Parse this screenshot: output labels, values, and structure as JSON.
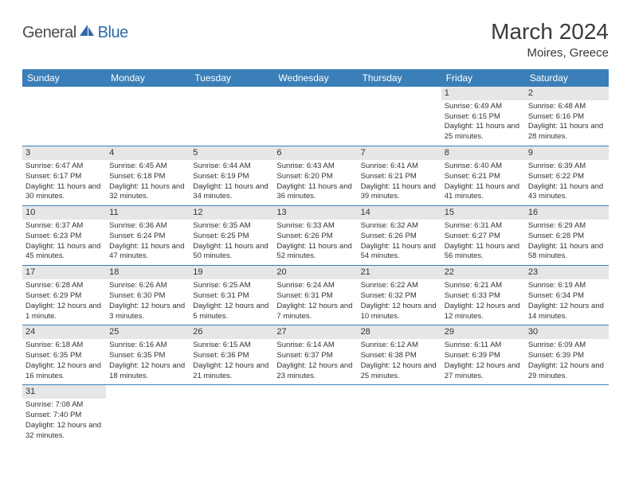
{
  "logo": {
    "text_gray": "General",
    "text_blue": "Blue"
  },
  "header": {
    "title": "March 2024",
    "location": "Moires, Greece"
  },
  "colors": {
    "header_bg": "#3b7fb8",
    "header_text": "#ffffff",
    "daynum_bg": "#e6e6e6",
    "row_border": "#3b7fb8",
    "body_text": "#333333",
    "logo_gray": "#4a4a4a",
    "logo_blue": "#2d6aa8"
  },
  "dayHeaders": [
    "Sunday",
    "Monday",
    "Tuesday",
    "Wednesday",
    "Thursday",
    "Friday",
    "Saturday"
  ],
  "weeks": [
    [
      null,
      null,
      null,
      null,
      null,
      {
        "n": "1",
        "sunrise": "Sunrise: 6:49 AM",
        "sunset": "Sunset: 6:15 PM",
        "daylight": "Daylight: 11 hours and 25 minutes."
      },
      {
        "n": "2",
        "sunrise": "Sunrise: 6:48 AM",
        "sunset": "Sunset: 6:16 PM",
        "daylight": "Daylight: 11 hours and 28 minutes."
      }
    ],
    [
      {
        "n": "3",
        "sunrise": "Sunrise: 6:47 AM",
        "sunset": "Sunset: 6:17 PM",
        "daylight": "Daylight: 11 hours and 30 minutes."
      },
      {
        "n": "4",
        "sunrise": "Sunrise: 6:45 AM",
        "sunset": "Sunset: 6:18 PM",
        "daylight": "Daylight: 11 hours and 32 minutes."
      },
      {
        "n": "5",
        "sunrise": "Sunrise: 6:44 AM",
        "sunset": "Sunset: 6:19 PM",
        "daylight": "Daylight: 11 hours and 34 minutes."
      },
      {
        "n": "6",
        "sunrise": "Sunrise: 6:43 AM",
        "sunset": "Sunset: 6:20 PM",
        "daylight": "Daylight: 11 hours and 36 minutes."
      },
      {
        "n": "7",
        "sunrise": "Sunrise: 6:41 AM",
        "sunset": "Sunset: 6:21 PM",
        "daylight": "Daylight: 11 hours and 39 minutes."
      },
      {
        "n": "8",
        "sunrise": "Sunrise: 6:40 AM",
        "sunset": "Sunset: 6:21 PM",
        "daylight": "Daylight: 11 hours and 41 minutes."
      },
      {
        "n": "9",
        "sunrise": "Sunrise: 6:39 AM",
        "sunset": "Sunset: 6:22 PM",
        "daylight": "Daylight: 11 hours and 43 minutes."
      }
    ],
    [
      {
        "n": "10",
        "sunrise": "Sunrise: 6:37 AM",
        "sunset": "Sunset: 6:23 PM",
        "daylight": "Daylight: 11 hours and 45 minutes."
      },
      {
        "n": "11",
        "sunrise": "Sunrise: 6:36 AM",
        "sunset": "Sunset: 6:24 PM",
        "daylight": "Daylight: 11 hours and 47 minutes."
      },
      {
        "n": "12",
        "sunrise": "Sunrise: 6:35 AM",
        "sunset": "Sunset: 6:25 PM",
        "daylight": "Daylight: 11 hours and 50 minutes."
      },
      {
        "n": "13",
        "sunrise": "Sunrise: 6:33 AM",
        "sunset": "Sunset: 6:26 PM",
        "daylight": "Daylight: 11 hours and 52 minutes."
      },
      {
        "n": "14",
        "sunrise": "Sunrise: 6:32 AM",
        "sunset": "Sunset: 6:26 PM",
        "daylight": "Daylight: 11 hours and 54 minutes."
      },
      {
        "n": "15",
        "sunrise": "Sunrise: 6:31 AM",
        "sunset": "Sunset: 6:27 PM",
        "daylight": "Daylight: 11 hours and 56 minutes."
      },
      {
        "n": "16",
        "sunrise": "Sunrise: 6:29 AM",
        "sunset": "Sunset: 6:28 PM",
        "daylight": "Daylight: 11 hours and 58 minutes."
      }
    ],
    [
      {
        "n": "17",
        "sunrise": "Sunrise: 6:28 AM",
        "sunset": "Sunset: 6:29 PM",
        "daylight": "Daylight: 12 hours and 1 minute."
      },
      {
        "n": "18",
        "sunrise": "Sunrise: 6:26 AM",
        "sunset": "Sunset: 6:30 PM",
        "daylight": "Daylight: 12 hours and 3 minutes."
      },
      {
        "n": "19",
        "sunrise": "Sunrise: 6:25 AM",
        "sunset": "Sunset: 6:31 PM",
        "daylight": "Daylight: 12 hours and 5 minutes."
      },
      {
        "n": "20",
        "sunrise": "Sunrise: 6:24 AM",
        "sunset": "Sunset: 6:31 PM",
        "daylight": "Daylight: 12 hours and 7 minutes."
      },
      {
        "n": "21",
        "sunrise": "Sunrise: 6:22 AM",
        "sunset": "Sunset: 6:32 PM",
        "daylight": "Daylight: 12 hours and 10 minutes."
      },
      {
        "n": "22",
        "sunrise": "Sunrise: 6:21 AM",
        "sunset": "Sunset: 6:33 PM",
        "daylight": "Daylight: 12 hours and 12 minutes."
      },
      {
        "n": "23",
        "sunrise": "Sunrise: 6:19 AM",
        "sunset": "Sunset: 6:34 PM",
        "daylight": "Daylight: 12 hours and 14 minutes."
      }
    ],
    [
      {
        "n": "24",
        "sunrise": "Sunrise: 6:18 AM",
        "sunset": "Sunset: 6:35 PM",
        "daylight": "Daylight: 12 hours and 16 minutes."
      },
      {
        "n": "25",
        "sunrise": "Sunrise: 6:16 AM",
        "sunset": "Sunset: 6:35 PM",
        "daylight": "Daylight: 12 hours and 18 minutes."
      },
      {
        "n": "26",
        "sunrise": "Sunrise: 6:15 AM",
        "sunset": "Sunset: 6:36 PM",
        "daylight": "Daylight: 12 hours and 21 minutes."
      },
      {
        "n": "27",
        "sunrise": "Sunrise: 6:14 AM",
        "sunset": "Sunset: 6:37 PM",
        "daylight": "Daylight: 12 hours and 23 minutes."
      },
      {
        "n": "28",
        "sunrise": "Sunrise: 6:12 AM",
        "sunset": "Sunset: 6:38 PM",
        "daylight": "Daylight: 12 hours and 25 minutes."
      },
      {
        "n": "29",
        "sunrise": "Sunrise: 6:11 AM",
        "sunset": "Sunset: 6:39 PM",
        "daylight": "Daylight: 12 hours and 27 minutes."
      },
      {
        "n": "30",
        "sunrise": "Sunrise: 6:09 AM",
        "sunset": "Sunset: 6:39 PM",
        "daylight": "Daylight: 12 hours and 29 minutes."
      }
    ],
    [
      {
        "n": "31",
        "sunrise": "Sunrise: 7:08 AM",
        "sunset": "Sunset: 7:40 PM",
        "daylight": "Daylight: 12 hours and 32 minutes."
      },
      null,
      null,
      null,
      null,
      null,
      null
    ]
  ]
}
